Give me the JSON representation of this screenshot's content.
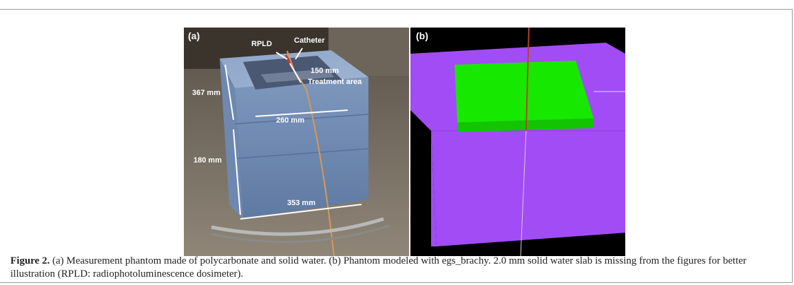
{
  "figure": {
    "panel_a": {
      "label": "(a)",
      "annotations": {
        "rpld": "RPLD",
        "catheter": "Catheter",
        "length_150": "150 mm",
        "treatment_area": "Treatment area",
        "height_367": "367 mm",
        "width_260": "260 mm",
        "height_180": "180 mm",
        "width_353": "353 mm"
      }
    },
    "panel_b": {
      "label": "(b)",
      "colors": {
        "background": "#000000",
        "box": "#a24cf5",
        "slab": "#17e800",
        "catheter": "#b8412e"
      }
    },
    "caption": {
      "label": "Figure 2.",
      "text": " (a) Measurement phantom made of polycarbonate and solid water. (b) Phantom modeled with egs_brachy. 2.0 mm solid water slab is missing from the figures for better illustration (RPLD: radiophotoluminescence dosimeter)."
    }
  }
}
